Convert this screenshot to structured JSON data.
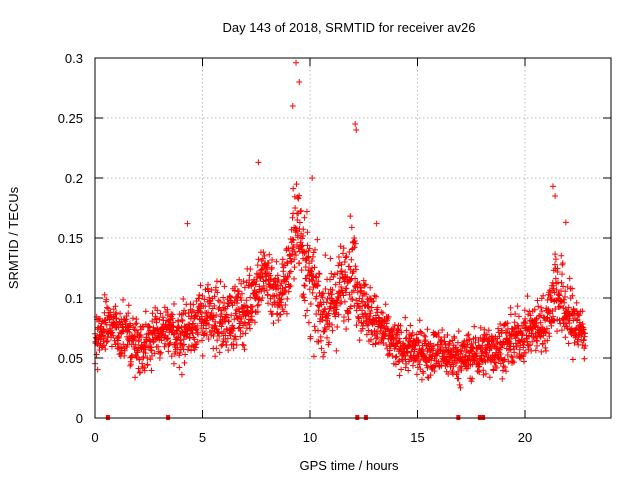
{
  "chart_data": {
    "type": "scatter",
    "title": "Day 143 of 2018, SRMTID for receiver av26",
    "xlabel": "GPS time / hours",
    "ylabel": "SRMTID / TECUs",
    "xlim": [
      0,
      24
    ],
    "ylim": [
      0,
      0.3
    ],
    "xticks": [
      0,
      5,
      10,
      15,
      20
    ],
    "xtick_labels": [
      "0",
      "5",
      "10",
      "15",
      "20"
    ],
    "yticks": [
      0,
      0.05,
      0.1,
      0.15,
      0.2,
      0.25,
      0.3
    ],
    "ytick_labels": [
      "0",
      "0.05",
      "0.1",
      "0.15",
      "0.2",
      "0.25",
      "0.3"
    ],
    "grid": true,
    "marker": "+",
    "color": "#ff0000",
    "data_range_x": [
      0,
      22.8
    ],
    "zero_marks_x": [
      0.6,
      3.4,
      12.2,
      12.6,
      16.9,
      17.9,
      18.05
    ],
    "series": [
      {
        "name": "SRMTID",
        "profile_x": [
          0,
          0.5,
          1,
          1.5,
          2,
          3,
          4,
          5,
          6,
          7,
          7.5,
          8,
          8.5,
          9,
          9.3,
          9.6,
          10,
          10.5,
          11,
          11.5,
          12,
          12.3,
          13,
          14,
          15,
          16,
          17,
          18,
          19,
          19.5,
          20,
          21,
          21.4,
          22,
          22.5,
          22.8
        ],
        "profile_y": [
          0.06,
          0.08,
          0.075,
          0.07,
          0.06,
          0.07,
          0.07,
          0.085,
          0.08,
          0.09,
          0.11,
          0.12,
          0.1,
          0.12,
          0.16,
          0.15,
          0.11,
          0.09,
          0.09,
          0.11,
          0.13,
          0.1,
          0.08,
          0.06,
          0.055,
          0.055,
          0.05,
          0.055,
          0.06,
          0.065,
          0.07,
          0.08,
          0.11,
          0.085,
          0.075,
          0.07
        ],
        "spread_x": [
          0,
          9,
          9.6,
          10.5,
          12,
          12.5,
          14,
          21,
          21.4,
          22.8
        ],
        "spread_y": [
          0.03,
          0.04,
          0.07,
          0.045,
          0.05,
          0.035,
          0.025,
          0.03,
          0.05,
          0.03
        ],
        "peaks": [
          {
            "x": 9.35,
            "y": 0.296
          },
          {
            "x": 9.5,
            "y": 0.28
          },
          {
            "x": 9.2,
            "y": 0.26
          },
          {
            "x": 12.1,
            "y": 0.245
          },
          {
            "x": 12.15,
            "y": 0.24
          },
          {
            "x": 7.6,
            "y": 0.213
          },
          {
            "x": 21.3,
            "y": 0.193
          },
          {
            "x": 21.4,
            "y": 0.185
          },
          {
            "x": 10.1,
            "y": 0.2
          },
          {
            "x": 21.9,
            "y": 0.163
          },
          {
            "x": 4.3,
            "y": 0.162
          },
          {
            "x": 13.1,
            "y": 0.162
          }
        ]
      }
    ]
  }
}
